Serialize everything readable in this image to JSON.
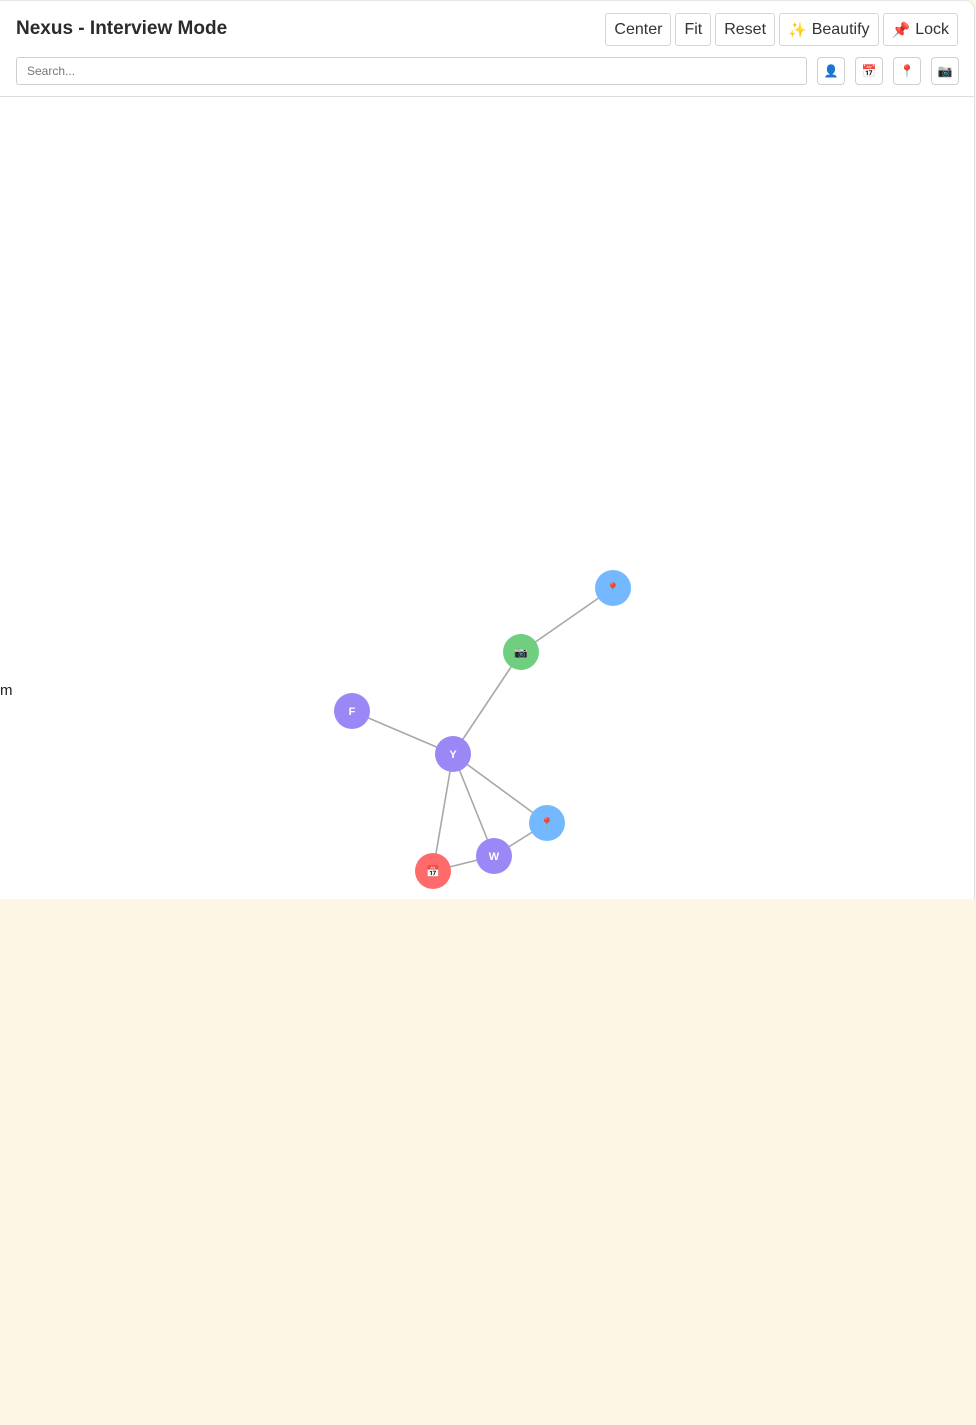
{
  "app": {
    "title": "Nexus - Interview Mode"
  },
  "toolbar": {
    "center_label": "Center",
    "fit_label": "Fit",
    "reset_label": "Reset",
    "beautify_icon": "✨",
    "beautify_label": "Beautify",
    "lock_icon": "📌",
    "lock_label": "Lock"
  },
  "search": {
    "placeholder": "Search...",
    "value": ""
  },
  "filters": [
    {
      "icon": "👤",
      "name": "person-filter-icon"
    },
    {
      "icon": "📅",
      "name": "calendar-filter-icon"
    },
    {
      "icon": "📍",
      "name": "location-filter-icon"
    },
    {
      "icon": "📷",
      "name": "camera-filter-icon"
    }
  ],
  "stray_text": "m",
  "colors": {
    "person": "#9b87f5",
    "location": "#74b9ff",
    "event": "#ff6b6b",
    "media": "#6fcf7f",
    "edge": "#a8a8a8",
    "outside_background": "#fef6e4"
  },
  "graph": {
    "nodes": [
      {
        "id": "loc1",
        "type": "location",
        "label": "📍"
      },
      {
        "id": "cam",
        "type": "media",
        "label": "📷"
      },
      {
        "id": "F",
        "type": "person",
        "label": "F"
      },
      {
        "id": "Y",
        "type": "person",
        "label": "Y"
      },
      {
        "id": "loc2",
        "type": "location",
        "label": "📍"
      },
      {
        "id": "W",
        "type": "person",
        "label": "W"
      },
      {
        "id": "evt",
        "type": "event",
        "label": "📅"
      }
    ],
    "edges": [
      [
        "loc1",
        "cam"
      ],
      [
        "cam",
        "Y"
      ],
      [
        "F",
        "Y"
      ],
      [
        "Y",
        "loc2"
      ],
      [
        "Y",
        "W"
      ],
      [
        "Y",
        "evt"
      ],
      [
        "W",
        "loc2"
      ],
      [
        "W",
        "evt"
      ]
    ]
  }
}
